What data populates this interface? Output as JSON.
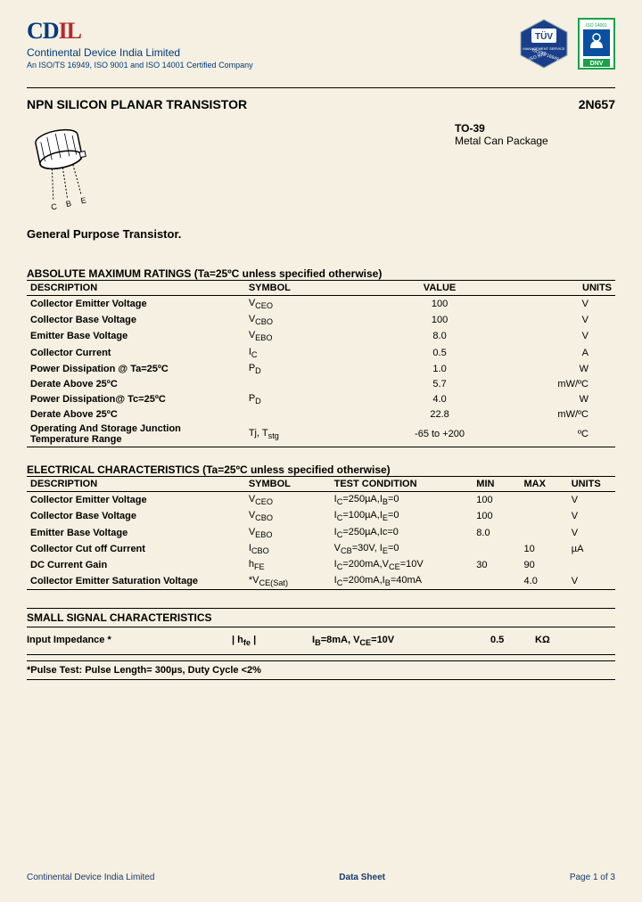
{
  "header": {
    "logo_cd": "CD",
    "logo_il": "IL",
    "company": "Continental Device India Limited",
    "cert": "An ISO/TS 16949, ISO 9001 and ISO 14001 Certified Company"
  },
  "title": {
    "main": "NPN SILICON PLANAR TRANSISTOR",
    "part": "2N657",
    "pkg1": "TO-39",
    "pkg2": "Metal Can Package",
    "subtitle": "General Purpose Transistor."
  },
  "abs": {
    "heading": "ABSOLUTE MAXIMUM RATINGS (Ta=25ºC unless specified otherwise)",
    "cols": [
      "DESCRIPTION",
      "SYMBOL",
      "VALUE",
      "UNITS"
    ],
    "rows": [
      {
        "d": "Collector Emitter Voltage",
        "s": "V",
        "sub": "CEO",
        "v": "100",
        "u": "V"
      },
      {
        "d": "Collector Base Voltage",
        "s": "V",
        "sub": "CBO",
        "v": "100",
        "u": "V"
      },
      {
        "d": "Emitter Base Voltage",
        "s": "V",
        "sub": "EBO",
        "v": "8.0",
        "u": "V"
      },
      {
        "d": "Collector Current",
        "s": "I",
        "sub": "C",
        "v": "0.5",
        "u": "A"
      },
      {
        "d": "Power Dissipation @ Ta=25ºC",
        "s": "P",
        "sub": "D",
        "v": "1.0",
        "u": "W"
      },
      {
        "d": "Derate Above 25ºC",
        "s": "",
        "sub": "",
        "v": "5.7",
        "u": "mW/ºC"
      },
      {
        "d": "Power Dissipation@ Tc=25ºC",
        "s": "P",
        "sub": "D",
        "v": "4.0",
        "u": "W"
      },
      {
        "d": "Derate Above 25ºC",
        "s": "",
        "sub": "",
        "v": "22.8",
        "u": "mW/ºC"
      },
      {
        "d": "Operating And Storage Junction Temperature Range",
        "s": "Tj, T",
        "sub": "stg",
        "v": "-65 to +200",
        "u": "ºC"
      }
    ]
  },
  "elec": {
    "heading": "ELECTRICAL CHARACTERISTICS (Ta=25ºC unless specified otherwise)",
    "cols": [
      "DESCRIPTION",
      "SYMBOL",
      "TEST CONDITION",
      "MIN",
      "MAX",
      "UNITS"
    ],
    "rows": [
      {
        "d": "Collector Emitter Voltage",
        "s": "V",
        "sub": "CEO",
        "t": "I<sub>C</sub>=250µA,I<sub>B</sub>=0",
        "min": "100",
        "max": "",
        "u": "V"
      },
      {
        "d": "Collector Base Voltage",
        "s": "V",
        "sub": "CBO",
        "t": "I<sub>C</sub>=100µA,I<sub>E</sub>=0",
        "min": "100",
        "max": "",
        "u": "V"
      },
      {
        "d": "Emitter Base Voltage",
        "s": "V",
        "sub": "EBO",
        "t": "I<sub>C</sub>=250µA,Ic=0",
        "min": "8.0",
        "max": "",
        "u": "V"
      },
      {
        "d": "Collector Cut off Current",
        "s": "I",
        "sub": "CBO",
        "t": "V<sub>CB</sub>=30V, I<sub>E</sub>=0",
        "min": "",
        "max": "10",
        "u": "µA"
      },
      {
        "d": "DC Current Gain",
        "s": "h",
        "sub": "FE",
        "t": "I<sub>C</sub>=200mA,V<sub>CE</sub>=10V",
        "min": "30",
        "max": "90",
        "u": ""
      },
      {
        "d": "Collector Emitter Saturation Voltage",
        "s": "*V",
        "sub": "CE(Sat)",
        "t": "I<sub>C</sub>=200mA,I<sub>B</sub>=40mA",
        "min": "",
        "max": "4.0",
        "u": "V"
      }
    ]
  },
  "ssc": {
    "heading": "SMALL SIGNAL CHARACTERISTICS",
    "desc": "Input Impedance *",
    "sym": "| h",
    "symsub": "fe",
    "symend": " |",
    "cond": "I<sub>B</sub>=8mA, V<sub>CE</sub>=10V",
    "max": "0.5",
    "unit": "KΩ"
  },
  "footnote": "*Pulse Test: Pulse Length= 300µs, Duty Cycle <2%",
  "footer": {
    "left": "Continental Device India Limited",
    "center": "Data Sheet",
    "right": "Page 1 of 3"
  },
  "colors": {
    "blue": "#003a7d",
    "red": "#b8292f"
  }
}
